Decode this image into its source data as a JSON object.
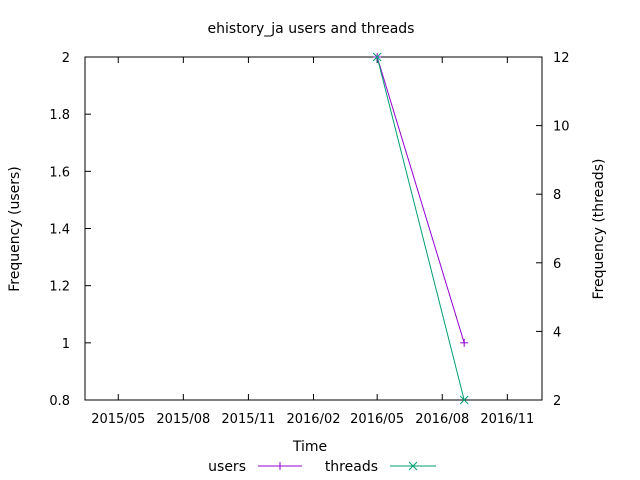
{
  "chart_data": {
    "type": "line",
    "title": "ehistory_ja users and threads",
    "xlabel": "Time",
    "ylabel": "Frequency (users)",
    "y2label": "Frequency (threads)",
    "x_ticks": [
      "2015/05",
      "2015/08",
      "2015/11",
      "2016/02",
      "2016/05",
      "2016/08",
      "2016/11"
    ],
    "xlim": [
      "2015-03-15",
      "2016-12-20"
    ],
    "ylim": [
      0.8,
      2
    ],
    "y_ticks": [
      "0.8",
      "1",
      "1.2",
      "1.4",
      "1.6",
      "1.8",
      "2"
    ],
    "y2lim": [
      2,
      12
    ],
    "y2_ticks": [
      "2",
      "4",
      "6",
      "8",
      "10",
      "12"
    ],
    "grid": false,
    "legend_position": "bottom-center",
    "series": [
      {
        "name": "users",
        "axis": "y",
        "color": "#9400d3",
        "marker": "+",
        "x": [
          "2016-05-01",
          "2016-09-01"
        ],
        "y": [
          2,
          1
        ]
      },
      {
        "name": "threads",
        "axis": "y2",
        "color": "#009e73",
        "marker": "x",
        "x": [
          "2016-05-01",
          "2016-09-01"
        ],
        "y": [
          12,
          2
        ]
      }
    ]
  }
}
